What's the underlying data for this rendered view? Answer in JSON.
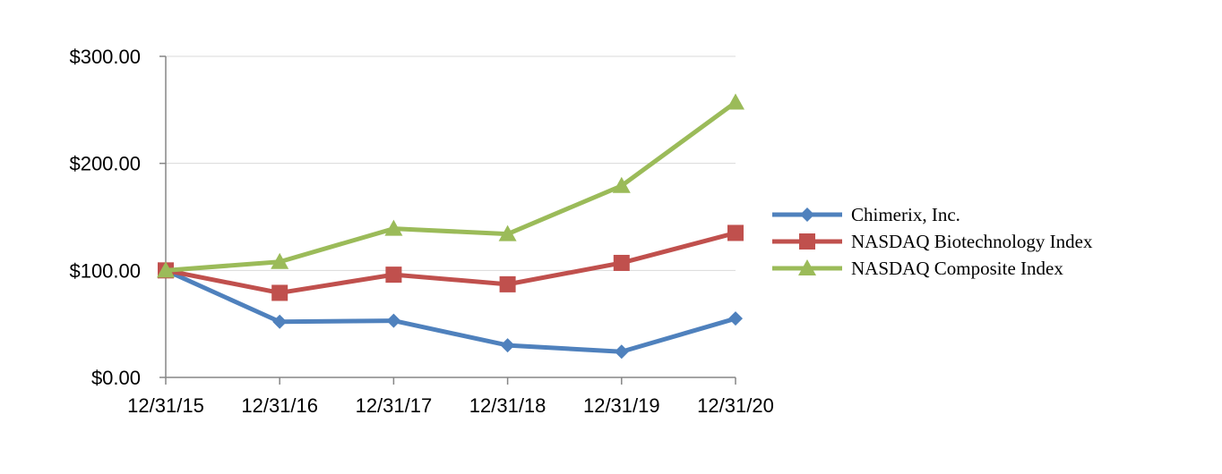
{
  "chart_data": {
    "type": "line",
    "title": "",
    "xlabel": "",
    "ylabel": "",
    "categories": [
      "12/31/15",
      "12/31/16",
      "12/31/17",
      "12/31/18",
      "12/31/19",
      "12/31/20"
    ],
    "ylim": [
      0,
      300
    ],
    "yticks": [
      {
        "value": 0,
        "label": "$0.00"
      },
      {
        "value": 100,
        "label": "$100.00"
      },
      {
        "value": 200,
        "label": "$200.00"
      },
      {
        "value": 300,
        "label": "$300.00"
      }
    ],
    "grid": true,
    "legend_position": "right",
    "series": [
      {
        "name": "Chimerix, Inc.",
        "color": "#4F81BD",
        "marker": "diamond",
        "values": [
          100,
          52,
          53,
          30,
          24,
          55
        ]
      },
      {
        "name": "NASDAQ Biotechnology Index",
        "color": "#C0504D",
        "marker": "square",
        "values": [
          100,
          79,
          96,
          87,
          107,
          135
        ]
      },
      {
        "name": "NASDAQ Composite Index",
        "color": "#9BBB59",
        "marker": "triangle",
        "values": [
          100,
          108,
          139,
          134,
          179,
          257
        ]
      }
    ]
  }
}
